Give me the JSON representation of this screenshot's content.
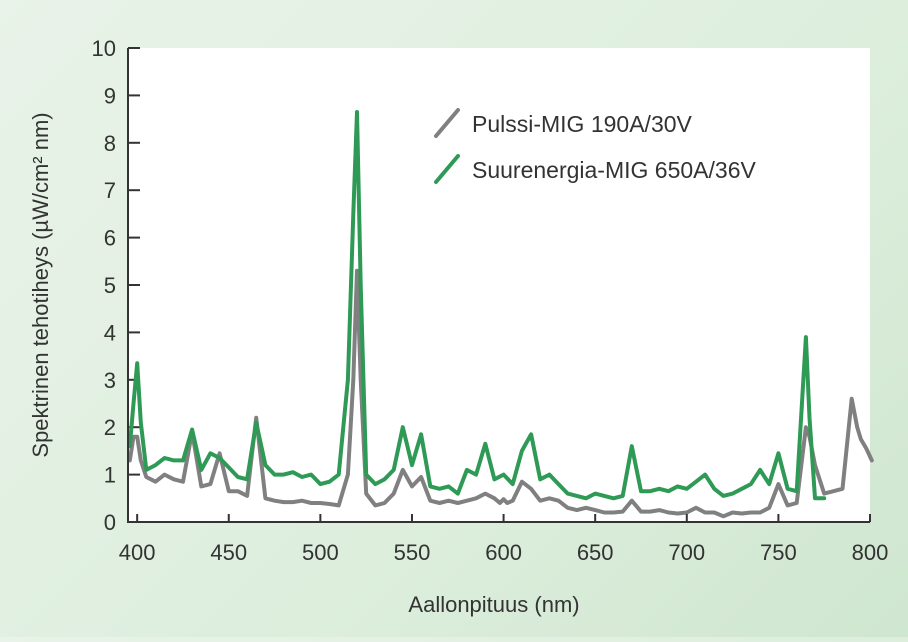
{
  "chart_data": {
    "type": "line",
    "title": "",
    "xlabel": "Aallonpituus (nm)",
    "ylabel": "Spektrinen tehotiheys (µW/cm² nm)",
    "xlim": [
      395,
      800
    ],
    "ylim": [
      0,
      10
    ],
    "xticks": [
      400,
      450,
      500,
      550,
      600,
      650,
      700,
      750,
      800
    ],
    "yticks": [
      0,
      1,
      2,
      3,
      4,
      5,
      6,
      7,
      8,
      9,
      10
    ],
    "legend_position": "top-right",
    "colors": {
      "pulssi": "#808080",
      "suurenergia": "#2e9a55"
    },
    "series": [
      {
        "name": "Pulssi-MIG 190A/30V",
        "color": "#808080",
        "x": [
          396,
          398,
          400,
          402,
          405,
          410,
          415,
          420,
          425,
          430,
          435,
          440,
          445,
          450,
          455,
          460,
          465,
          470,
          475,
          480,
          485,
          490,
          495,
          500,
          505,
          510,
          515,
          518,
          520,
          522,
          525,
          530,
          535,
          540,
          545,
          550,
          555,
          560,
          565,
          570,
          575,
          580,
          585,
          590,
          595,
          598,
          600,
          602,
          605,
          610,
          615,
          620,
          625,
          630,
          635,
          640,
          645,
          650,
          655,
          660,
          665,
          670,
          675,
          680,
          685,
          690,
          695,
          700,
          705,
          710,
          715,
          720,
          725,
          730,
          735,
          740,
          745,
          750,
          755,
          760,
          765,
          767,
          770,
          775,
          780,
          785,
          790,
          793,
          795,
          798,
          801
        ],
        "y": [
          1.3,
          1.8,
          1.8,
          1.3,
          0.95,
          0.85,
          1.0,
          0.9,
          0.85,
          1.9,
          0.75,
          0.8,
          1.45,
          0.65,
          0.65,
          0.55,
          2.2,
          0.5,
          0.45,
          0.42,
          0.42,
          0.45,
          0.4,
          0.4,
          0.38,
          0.35,
          1.0,
          3.0,
          5.3,
          3.0,
          0.6,
          0.35,
          0.4,
          0.6,
          1.1,
          0.75,
          0.95,
          0.45,
          0.4,
          0.45,
          0.4,
          0.45,
          0.5,
          0.6,
          0.5,
          0.4,
          0.48,
          0.4,
          0.45,
          0.85,
          0.7,
          0.45,
          0.5,
          0.45,
          0.3,
          0.25,
          0.3,
          0.25,
          0.2,
          0.2,
          0.22,
          0.45,
          0.22,
          0.22,
          0.25,
          0.2,
          0.18,
          0.2,
          0.3,
          0.2,
          0.2,
          0.12,
          0.2,
          0.18,
          0.2,
          0.2,
          0.3,
          0.8,
          0.35,
          0.4,
          2.0,
          1.8,
          1.2,
          0.6,
          0.65,
          0.7,
          2.6,
          2.0,
          1.75,
          1.55,
          1.3
        ]
      },
      {
        "name": "Suurenergia-MIG 650A/36V",
        "color": "#2e9a55",
        "x": [
          396,
          398,
          400,
          402,
          405,
          410,
          415,
          420,
          425,
          430,
          435,
          440,
          445,
          450,
          455,
          460,
          465,
          470,
          475,
          480,
          485,
          490,
          495,
          500,
          505,
          510,
          515,
          518,
          520,
          522,
          525,
          530,
          535,
          540,
          545,
          550,
          555,
          560,
          565,
          570,
          575,
          580,
          585,
          590,
          595,
          600,
          605,
          610,
          615,
          620,
          625,
          630,
          635,
          640,
          645,
          650,
          655,
          660,
          665,
          670,
          675,
          680,
          685,
          690,
          695,
          700,
          705,
          710,
          715,
          720,
          725,
          730,
          735,
          740,
          745,
          750,
          755,
          760,
          765,
          767,
          770,
          775
        ],
        "y": [
          1.6,
          2.5,
          3.35,
          2.1,
          1.1,
          1.2,
          1.35,
          1.3,
          1.3,
          1.95,
          1.1,
          1.45,
          1.35,
          1.15,
          0.95,
          0.9,
          2.1,
          1.2,
          1.0,
          1.0,
          1.05,
          0.95,
          1.0,
          0.8,
          0.85,
          1.0,
          3.0,
          6.5,
          8.65,
          5.0,
          1.0,
          0.8,
          0.9,
          1.1,
          2.0,
          1.2,
          1.85,
          0.75,
          0.7,
          0.75,
          0.6,
          1.1,
          1.0,
          1.65,
          0.9,
          1.0,
          0.8,
          1.5,
          1.85,
          0.9,
          1.0,
          0.8,
          0.6,
          0.55,
          0.5,
          0.6,
          0.55,
          0.5,
          0.55,
          1.6,
          0.65,
          0.65,
          0.7,
          0.65,
          0.75,
          0.7,
          0.85,
          1.0,
          0.7,
          0.55,
          0.6,
          0.7,
          0.8,
          1.1,
          0.8,
          1.45,
          0.7,
          0.65,
          3.9,
          2.2,
          0.5,
          0.5
        ]
      }
    ]
  }
}
